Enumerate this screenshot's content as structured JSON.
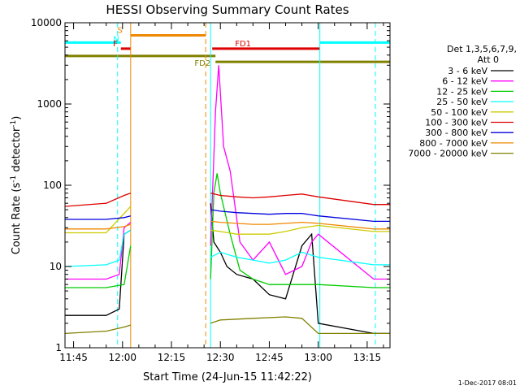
{
  "chart_data": {
    "type": "line",
    "title": "HESSI Observing Summary Count Rates",
    "xlabel": "Start Time (24-Jun-15 11:42:22)",
    "ylabel_main": "Count Rate (s",
    "ylabel_sup1": "-1",
    "ylabel_mid": " detector",
    "ylabel_sup2": "-1",
    "ylabel_end": ")",
    "y_scale": "log",
    "xlim": [
      "11:42:22",
      "13:22:00"
    ],
    "ylim": [
      1,
      10000
    ],
    "x_ticks": [
      "11:45",
      "12:00",
      "12:15",
      "12:30",
      "12:45",
      "13:00",
      "13:15"
    ],
    "y_ticks": [
      "1",
      "10",
      "100",
      "1000",
      "10000"
    ],
    "date_stamp": "1-Dec-2017 08:01",
    "legend": {
      "header1": "Det 1,3,5,6,7,9,",
      "header2": "Att 0",
      "placement": "right"
    },
    "series": [
      {
        "name": "3 - 6 keV",
        "color": "#000000",
        "x": [
          "11:42:22",
          "11:55",
          "11:59",
          "12:00:30",
          "12:02:30",
          "12:25:30",
          "12:27",
          "12:28",
          "12:30",
          "12:32",
          "12:35",
          "12:40",
          "12:45",
          "12:50",
          "12:55",
          "12:58",
          "13:00",
          "13:17",
          "13:22"
        ],
        "y": [
          2.5,
          2.5,
          3,
          25,
          28,
          null,
          60,
          20,
          15,
          10,
          8,
          7,
          4.5,
          4,
          18,
          25,
          2,
          1.5,
          1.5
        ]
      },
      {
        "name": "6 - 12 keV",
        "color": "#ff00ff",
        "x": [
          "11:42:22",
          "11:55",
          "11:59",
          "12:00:30",
          "12:02:30",
          "12:25:30",
          "12:27",
          "12:28:30",
          "12:29:30",
          "12:31",
          "12:33",
          "12:36",
          "12:40",
          "12:45",
          "12:50",
          "12:55",
          "12:58",
          "13:00",
          "13:17",
          "13:22"
        ],
        "y": [
          7,
          7,
          8,
          30,
          35,
          null,
          18,
          800,
          3000,
          300,
          150,
          20,
          12,
          20,
          8,
          10,
          20,
          25,
          7,
          7
        ]
      },
      {
        "name": "12 - 25 keV",
        "color": "#00cc00",
        "x": [
          "11:42:22",
          "11:55",
          "12:00:30",
          "12:02:30",
          "12:25:30",
          "12:27",
          "12:28",
          "12:29",
          "12:30",
          "12:33",
          "12:36",
          "12:40",
          "12:45",
          "12:50",
          "12:55",
          "13:00",
          "13:17",
          "13:22"
        ],
        "y": [
          5.5,
          5.5,
          6,
          18,
          null,
          7,
          80,
          140,
          80,
          25,
          9,
          7,
          6,
          6,
          6,
          6,
          5.5,
          5.5
        ]
      },
      {
        "name": "25 - 50 keV",
        "color": "#00ffff",
        "x": [
          "11:42:22",
          "11:55",
          "11:59",
          "12:00:30",
          "12:02:30",
          "12:25:30",
          "12:27",
          "12:30",
          "12:35",
          "12:40",
          "12:45",
          "12:50",
          "12:55",
          "13:00",
          "13:17",
          "13:22"
        ],
        "y": [
          10,
          10.5,
          12,
          25,
          28,
          null,
          13,
          15,
          13,
          12,
          11,
          12,
          15,
          13,
          10.5,
          10.5
        ]
      },
      {
        "name": "50 - 100 keV",
        "color": "#cccc00",
        "x": [
          "11:42:22",
          "11:55",
          "12:00:30",
          "12:02:30",
          "12:25:30",
          "12:27",
          "12:30",
          "12:35",
          "12:40",
          "12:45",
          "12:50",
          "12:55",
          "13:00",
          "13:17",
          "13:22"
        ],
        "y": [
          26,
          26,
          45,
          55,
          null,
          28,
          27,
          25,
          25,
          25,
          27,
          30,
          32,
          27,
          27
        ]
      },
      {
        "name": "100 - 300 keV",
        "color": "#dd0000",
        "x": [
          "11:42:22",
          "11:55",
          "12:00:30",
          "12:02:30",
          "12:25:30",
          "12:27",
          "12:30",
          "12:35",
          "12:40",
          "12:45",
          "12:50",
          "12:55",
          "13:00",
          "13:17",
          "13:22"
        ],
        "y": [
          55,
          60,
          75,
          80,
          null,
          80,
          75,
          72,
          70,
          72,
          75,
          78,
          72,
          58,
          58
        ]
      },
      {
        "name": "300 - 800 keV",
        "color": "#0000dd",
        "x": [
          "11:42:22",
          "11:55",
          "12:00:30",
          "12:02:30",
          "12:25:30",
          "12:27",
          "12:30",
          "12:35",
          "12:40",
          "12:45",
          "12:50",
          "12:55",
          "13:00",
          "13:17",
          "13:22"
        ],
        "y": [
          38,
          38,
          40,
          42,
          null,
          50,
          48,
          46,
          45,
          44,
          45,
          45,
          42,
          36,
          36
        ]
      },
      {
        "name": "800 - 7000 keV",
        "color": "#ee8800",
        "x": [
          "11:42:22",
          "11:55",
          "12:00:30",
          "12:02:30",
          "12:25:30",
          "12:27",
          "12:30",
          "12:35",
          "12:40",
          "12:45",
          "12:50",
          "12:55",
          "13:00",
          "13:17",
          "13:22"
        ],
        "y": [
          29,
          29,
          31,
          33,
          null,
          36,
          35,
          34,
          33,
          33,
          34,
          35,
          34,
          29,
          29
        ]
      },
      {
        "name": "7000 - 20000 keV",
        "color": "#808000",
        "x": [
          "11:42:22",
          "11:55",
          "12:00:30",
          "12:02:30",
          "12:25:30",
          "12:27",
          "12:30",
          "12:40",
          "12:50",
          "12:55",
          "13:00",
          "13:17",
          "13:22"
        ],
        "y": [
          1.5,
          1.6,
          1.8,
          1.9,
          null,
          2,
          2.2,
          2.3,
          2.4,
          2.3,
          1.5,
          1.5,
          1.5
        ]
      }
    ],
    "flag_bars": [
      {
        "label": "S",
        "color": "#ee8800",
        "from": "12:02:30",
        "to": "12:25:30",
        "level": 7000
      },
      {
        "label": "N",
        "color": "#00ffff",
        "from": "11:42:22",
        "to": "11:59:30",
        "level": 5700
      },
      {
        "label": "N",
        "color": "#00ffff",
        "from": "13:00:30",
        "to": "13:22:00",
        "level": 5700
      },
      {
        "label": "F",
        "color": "#dd0000",
        "from": "11:59:30",
        "to": "12:02:30",
        "level": 4800
      },
      {
        "label": "FD1",
        "color": "#dd0000",
        "from": "12:27:30",
        "to": "13:00:30",
        "level": 4800
      },
      {
        "label": "FD2",
        "color": "#808000",
        "from": "11:42:22",
        "to": "12:28:30",
        "level": 3900
      },
      {
        "label": "",
        "color": "#808000",
        "from": "12:28:30",
        "to": "13:22:00",
        "level": 3300
      }
    ],
    "markers": [
      {
        "kind": "cyan-dashed",
        "color": "#00ffff",
        "dashed": true,
        "x": "11:42:22"
      },
      {
        "kind": "cyan-dashed",
        "color": "#00ffff",
        "dashed": true,
        "x": "11:58:30"
      },
      {
        "kind": "orange-solid",
        "color": "#ee8800",
        "dashed": false,
        "x": "12:02:30"
      },
      {
        "kind": "orange-dashed",
        "color": "#ee8800",
        "dashed": true,
        "x": "12:25:30"
      },
      {
        "kind": "cyan-solid",
        "color": "#00ffff",
        "dashed": false,
        "x": "12:27:00"
      },
      {
        "kind": "cyan-solid",
        "color": "#00ffff",
        "dashed": false,
        "x": "13:00:30"
      },
      {
        "kind": "cyan-dashed",
        "color": "#00ffff",
        "dashed": true,
        "x": "13:17:30"
      }
    ]
  }
}
